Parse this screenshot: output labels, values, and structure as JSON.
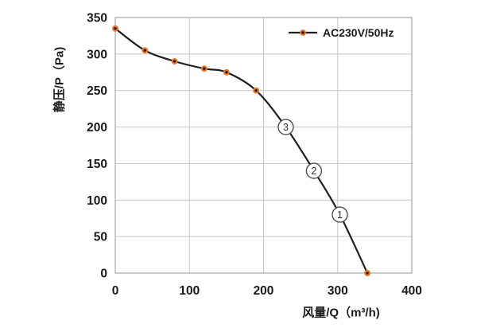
{
  "chart_data": {
    "type": "line",
    "title": "",
    "xlabel": "风量/Q（m³/h)",
    "ylabel": "静压/P（Pa)",
    "xlim": [
      0,
      400
    ],
    "ylim": [
      0,
      350
    ],
    "x_ticks": [
      0,
      100,
      200,
      300,
      400
    ],
    "y_ticks": [
      0,
      50,
      100,
      150,
      200,
      250,
      300,
      350
    ],
    "grid": true,
    "legend_position": "top-right-inside",
    "colors": {
      "grid": "#c6c6c6",
      "plot_border": "#a6a6a6",
      "tick_text": "#1a1a1a",
      "annotation_ring": "#4d4d4d",
      "annotation_fill": "#ffffff"
    },
    "series": [
      {
        "name": "AC230V/50Hz",
        "color": "#1f1f1f",
        "marker_fill": "#1a1a1a",
        "marker_stroke": "#e8762c",
        "points": [
          [
            0,
            335
          ],
          [
            40,
            305
          ],
          [
            80,
            290
          ],
          [
            120,
            280
          ],
          [
            150,
            275
          ],
          [
            190,
            250
          ],
          [
            340,
            0
          ]
        ]
      }
    ],
    "annotations": [
      {
        "label": "3",
        "x": 230,
        "y": 200
      },
      {
        "label": "2",
        "x": 268,
        "y": 140
      },
      {
        "label": "1",
        "x": 303,
        "y": 80
      }
    ]
  }
}
